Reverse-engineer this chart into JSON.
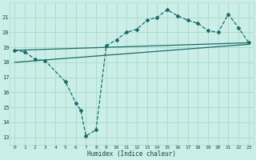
{
  "line1_x": [
    0,
    1,
    2,
    3,
    5,
    6,
    6.5,
    7,
    8,
    9,
    10,
    11,
    12,
    13,
    14,
    15,
    16,
    17,
    18,
    19,
    20,
    21,
    22,
    23
  ],
  "line1_y": [
    18.8,
    18.7,
    18.2,
    18.1,
    16.7,
    15.3,
    14.8,
    13.1,
    13.5,
    19.1,
    19.5,
    20.0,
    20.2,
    20.8,
    21.0,
    21.5,
    21.1,
    20.8,
    20.6,
    20.1,
    20.0,
    21.2,
    20.3,
    19.3
  ],
  "line2_x": [
    0,
    23
  ],
  "line2_y": [
    18.8,
    19.3
  ],
  "line3_x": [
    0,
    23
  ],
  "line3_y": [
    18.0,
    19.2
  ],
  "bg_color": "#cceee8",
  "grid_color": "#aaddcc",
  "line_color": "#1a6b6b",
  "xlabel": "Humidex (Indice chaleur)",
  "xlim": [
    -0.5,
    23.5
  ],
  "ylim": [
    12.5,
    22
  ],
  "yticks": [
    13,
    14,
    15,
    16,
    17,
    18,
    19,
    20,
    21
  ],
  "xticks": [
    0,
    1,
    2,
    3,
    4,
    5,
    6,
    7,
    8,
    9,
    10,
    11,
    12,
    13,
    14,
    15,
    16,
    17,
    18,
    19,
    20,
    21,
    22,
    23
  ]
}
